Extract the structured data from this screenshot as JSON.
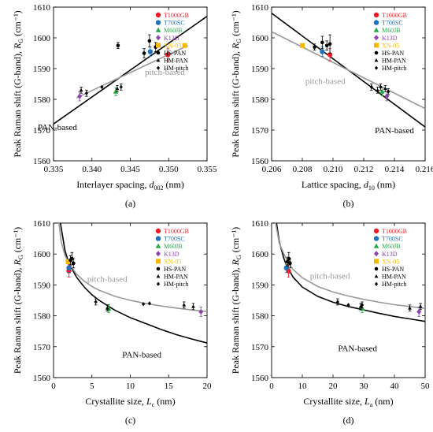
{
  "panels": [
    {
      "label": "(a)",
      "xlabel": "Interlayer spacing, ",
      "xsym": "d",
      "xsub": "002",
      "xunit": " (nm)",
      "ylabel": "Peak Raman shift (G-band), ",
      "ysym": "R",
      "ysub": "G",
      "yunit": " (cm⁻¹)",
      "xlim": [
        0.335,
        0.355
      ],
      "ylim": [
        1560,
        1610
      ],
      "xticks": [
        "0.335",
        "0.340",
        "0.345",
        "0.350",
        "0.355"
      ],
      "yticks": [
        "1560",
        "1570",
        "1580",
        "1590",
        "1600",
        "1610"
      ],
      "lines": [
        {
          "name": "PAN-based",
          "color": "#000000",
          "points": [
            [
              0.335,
              1572
            ],
            [
              0.355,
              1607
            ]
          ]
        },
        {
          "name": "pitch-based",
          "color": "#999999",
          "points": [
            [
              0.338,
              1580.5
            ],
            [
              0.3525,
              1597.5
            ]
          ]
        }
      ],
      "labels": [
        {
          "text": "pitch-based",
          "color": "#999999",
          "x": 0.3495,
          "y": 1588
        },
        {
          "text": "PAN-based",
          "color": "#000000",
          "x": 0.3355,
          "y": 1570
        }
      ]
    },
    {
      "label": "(b)",
      "xlabel": "Lattice spacing, ",
      "xsym": "d",
      "xsub": "10",
      "xunit": " (nm)",
      "ylabel": "Peak Raman shift (G-band), ",
      "ysym": "R",
      "ysub": "G",
      "yunit": " (cm⁻¹)",
      "xlim": [
        0.206,
        0.216
      ],
      "ylim": [
        1560,
        1610
      ],
      "xticks": [
        "0.206",
        "0.208",
        "0.210",
        "0.212",
        "0.214",
        "0.216"
      ],
      "yticks": [
        "1560",
        "1570",
        "1580",
        "1590",
        "1600",
        "1610"
      ],
      "lines": [
        {
          "name": "PAN-based",
          "color": "#000000",
          "points": [
            [
              0.206,
              1608
            ],
            [
              0.216,
              1571
            ]
          ]
        },
        {
          "name": "pitch-based",
          "color": "#999999",
          "points": [
            [
              0.206,
              1602
            ],
            [
              0.216,
              1577
            ]
          ]
        }
      ],
      "labels": [
        {
          "text": "pitch-based",
          "color": "#999999",
          "x": 0.2095,
          "y": 1585
        },
        {
          "text": "PAN-based",
          "color": "#000000",
          "x": 0.214,
          "y": 1569
        }
      ]
    },
    {
      "label": "(c)",
      "xlabel": "Crystallite size, ",
      "xsym": "L",
      "xsub": "c",
      "xunit": " (nm)",
      "ylabel": "Peak Raman shift (G-band), ",
      "ysym": "R",
      "ysub": "G",
      "yunit": " (cm⁻¹)",
      "xlim": [
        0,
        20
      ],
      "ylim": [
        1560,
        1610
      ],
      "xticks": [
        "0",
        "5",
        "10",
        "15",
        "20"
      ],
      "yticks": [
        "1560",
        "1570",
        "1580",
        "1590",
        "1600",
        "1610"
      ],
      "lines": [
        {
          "name": "PAN-based",
          "color": "#000000",
          "points": [
            [
              0.9,
              1610
            ],
            [
              1.5,
              1601
            ],
            [
              2,
              1597
            ],
            [
              3,
              1592.5
            ],
            [
              4,
              1589.3
            ],
            [
              5,
              1586.8
            ],
            [
              6,
              1584.9
            ],
            [
              8,
              1581.8
            ],
            [
              10,
              1579.4
            ],
            [
              12,
              1577.5
            ],
            [
              14,
              1575.6
            ],
            [
              16,
              1573.9
            ],
            [
              18,
              1572.5
            ],
            [
              20,
              1571.2
            ]
          ]
        },
        {
          "name": "pitch-based",
          "color": "#999999",
          "points": [
            [
              0.7,
              1610
            ],
            [
              1,
              1604
            ],
            [
              1.5,
              1599.5
            ],
            [
              2,
              1597
            ],
            [
              3,
              1593.5
            ],
            [
              4,
              1591.2
            ],
            [
              5,
              1589.5
            ],
            [
              6,
              1588.2
            ],
            [
              8,
              1586.3
            ],
            [
              10,
              1585
            ],
            [
              12,
              1584
            ],
            [
              14,
              1583.2
            ],
            [
              16,
              1582.5
            ],
            [
              18,
              1581.9
            ],
            [
              20,
              1581.4
            ]
          ]
        }
      ],
      "labels": [
        {
          "text": "pitch-based",
          "color": "#999999",
          "x": 7,
          "y": 1591
        },
        {
          "text": "PAN-based",
          "color": "#000000",
          "x": 11.5,
          "y": 1566.5
        }
      ]
    },
    {
      "label": "(d)",
      "xlabel": "Crystallite size, ",
      "xsym": "L",
      "xsub": "a",
      "xunit": " (nm)",
      "ylabel": "Peak Raman shift (G-band), ",
      "ysym": "R",
      "ysub": "G",
      "yunit": " (cm⁻¹)",
      "xlim": [
        0,
        50
      ],
      "ylim": [
        1560,
        1610
      ],
      "xticks": [
        "0",
        "10",
        "20",
        "30",
        "40",
        "50"
      ],
      "yticks": [
        "1560",
        "1570",
        "1580",
        "1590",
        "1600",
        "1610"
      ],
      "lines": [
        {
          "name": "PAN-based",
          "color": "#000000",
          "points": [
            [
              1.6,
              1610
            ],
            [
              2.5,
              1604
            ],
            [
              4,
              1598.5
            ],
            [
              5,
              1596
            ],
            [
              7,
              1592.5
            ],
            [
              10,
              1589.3
            ],
            [
              15,
              1586.3
            ],
            [
              20,
              1584.4
            ],
            [
              25,
              1583
            ],
            [
              30,
              1581.9
            ],
            [
              35,
              1580.8
            ],
            [
              40,
              1579.8
            ],
            [
              45,
              1579
            ],
            [
              50,
              1578.2
            ]
          ]
        },
        {
          "name": "pitch-based",
          "color": "#999999",
          "points": [
            [
              1.3,
              1610
            ],
            [
              2.5,
              1603.5
            ],
            [
              4,
              1600
            ],
            [
              5,
              1598
            ],
            [
              7,
              1595
            ],
            [
              10,
              1592.3
            ],
            [
              15,
              1589.5
            ],
            [
              20,
              1587.7
            ],
            [
              25,
              1586.4
            ],
            [
              30,
              1585.3
            ],
            [
              35,
              1584.4
            ],
            [
              40,
              1583.6
            ],
            [
              45,
              1583
            ],
            [
              50,
              1582.4
            ]
          ]
        }
      ],
      "labels": [
        {
          "text": "pitch-based",
          "color": "#999999",
          "x": 19,
          "y": 1592
        },
        {
          "text": "PAN-based",
          "color": "#000000",
          "x": 28,
          "y": 1568.5
        }
      ]
    }
  ],
  "legend": [
    {
      "name": "T1000GB",
      "color": "#ee1c25",
      "marker": "circle"
    },
    {
      "name": "T700SC",
      "color": "#1e73be",
      "marker": "circle"
    },
    {
      "name": "M60JB",
      "color": "#22aa44",
      "marker": "triangle"
    },
    {
      "name": "K13D",
      "color": "#8e44ad",
      "marker": "diamond"
    },
    {
      "name": "XN-05",
      "color": "#f5b800",
      "marker": "square"
    },
    {
      "name": "HS-PAN",
      "color": "#000000",
      "marker": "dot"
    },
    {
      "name": "HM-PAN",
      "color": "#000000",
      "marker": "smalltri"
    },
    {
      "name": "HM-pitch",
      "color": "#000000",
      "marker": "smalldiamond"
    }
  ],
  "chart_data": [
    {
      "type": "scatter",
      "title": "(a)",
      "xlabel": "Interlayer spacing, d002 (nm)",
      "ylabel": "Peak Raman shift (G-band), RG (cm⁻¹)",
      "xlim": [
        0.335,
        0.355
      ],
      "ylim": [
        1560,
        1610
      ],
      "series": [
        {
          "name": "T1000GB",
          "points": [
            [
              0.3499,
              1594.5
            ]
          ],
          "err": [
            2
          ]
        },
        {
          "name": "T700SC",
          "points": [
            [
              0.3476,
              1595.5
            ]
          ],
          "err": [
            1.5
          ]
        },
        {
          "name": "M60JB",
          "points": [
            [
              0.3431,
              1582.5
            ]
          ],
          "err": [
            1.3
          ]
        },
        {
          "name": "K13D",
          "points": [
            [
              0.3384,
              1581
            ]
          ],
          "err": [
            1.5
          ]
        },
        {
          "name": "XN-05",
          "points": [
            [
              0.3521,
              1597.5
            ]
          ],
          "err": [
            0
          ]
        },
        {
          "name": "HS-PAN",
          "points": [
            [
              0.3434,
              1597.5
            ],
            [
              0.3468,
              1595
            ],
            [
              0.3475,
              1599
            ],
            [
              0.3483,
              1597
            ]
          ],
          "err": [
            1,
            1.5,
            2,
            1.5
          ]
        },
        {
          "name": "HM-PAN",
          "points": [
            [
              0.3386,
              1583
            ],
            [
              0.3433,
              1583.5
            ]
          ],
          "err": [
            1,
            1
          ]
        },
        {
          "name": "HM-pitch",
          "points": [
            [
              0.3393,
              1582
            ],
            [
              0.3438,
              1584
            ],
            [
              0.3413,
              1584
            ]
          ],
          "err": [
            1,
            1,
            0
          ]
        }
      ]
    },
    {
      "type": "scatter",
      "title": "(b)",
      "xlabel": "Lattice spacing, d10 (nm)",
      "ylabel": "Peak Raman shift (G-band), RG (cm⁻¹)",
      "xlim": [
        0.206,
        0.216
      ],
      "ylim": [
        1560,
        1610
      ],
      "series": [
        {
          "name": "T1000GB",
          "points": [
            [
              0.2098,
              1594.5
            ]
          ],
          "err": [
            2
          ]
        },
        {
          "name": "T700SC",
          "points": [
            [
              0.2093,
              1595.5
            ]
          ],
          "err": [
            1.5
          ]
        },
        {
          "name": "M60JB",
          "points": [
            [
              0.2132,
              1582.5
            ]
          ],
          "err": [
            1.3
          ]
        },
        {
          "name": "K13D",
          "points": [
            [
              0.2135,
              1581
            ]
          ],
          "err": [
            1.5
          ]
        },
        {
          "name": "XN-05",
          "points": [
            [
              0.208,
              1597.5
            ]
          ],
          "err": [
            0
          ]
        },
        {
          "name": "HS-PAN",
          "points": [
            [
              0.2088,
              1597
            ],
            [
              0.2093,
              1598.5
            ],
            [
              0.2096,
              1597.5
            ],
            [
              0.2098,
              1598
            ]
          ],
          "err": [
            1,
            2,
            1.5,
            3
          ]
        },
        {
          "name": "HM-PAN",
          "points": [
            [
              0.2129,
              1583
            ],
            [
              0.2134,
              1583.5
            ]
          ],
          "err": [
            1,
            1
          ]
        },
        {
          "name": "HM-pitch",
          "points": [
            [
              0.2125,
              1584
            ],
            [
              0.2131,
              1584
            ],
            [
              0.2136,
              1582.5
            ]
          ],
          "err": [
            1,
            1,
            1
          ]
        }
      ]
    },
    {
      "type": "scatter",
      "title": "(c)",
      "xlabel": "Crystallite size, Lc (nm)",
      "ylabel": "Peak Raman shift (G-band), RG (cm⁻¹)",
      "xlim": [
        0,
        20
      ],
      "ylim": [
        1560,
        1610
      ],
      "series": [
        {
          "name": "T1000GB",
          "points": [
            [
              2.0,
              1594.5
            ]
          ],
          "err": [
            2
          ]
        },
        {
          "name": "T700SC",
          "points": [
            [
              2.0,
              1595.5
            ]
          ],
          "err": [
            1.5
          ]
        },
        {
          "name": "M60JB",
          "points": [
            [
              7.2,
              1582.3
            ]
          ],
          "err": [
            1.3
          ]
        },
        {
          "name": "K13D",
          "points": [
            [
              19.2,
              1581.3
            ]
          ],
          "err": [
            1.5
          ]
        },
        {
          "name": "XN-05",
          "points": [
            [
              1.9,
              1597.5
            ]
          ],
          "err": [
            0
          ]
        },
        {
          "name": "HS-PAN",
          "points": [
            [
              2.2,
              1598
            ],
            [
              2.4,
              1598.5
            ],
            [
              2.6,
              1597
            ]
          ],
          "err": [
            1.5,
            2,
            1.5
          ]
        },
        {
          "name": "HM-PAN",
          "points": [
            [
              7.0,
              1582.5
            ],
            [
              17,
              1583.5
            ],
            [
              18.2,
              1583
            ]
          ],
          "err": [
            1,
            1,
            1
          ]
        },
        {
          "name": "HM-pitch",
          "points": [
            [
              5.5,
              1584.5
            ],
            [
              11.7,
              1583.8
            ],
            [
              12.5,
              1584
            ]
          ],
          "err": [
            1,
            0,
            0
          ]
        }
      ]
    },
    {
      "type": "scatter",
      "title": "(d)",
      "xlabel": "Crystallite size, La (nm)",
      "ylabel": "Peak Raman shift (G-band), RG (cm⁻¹)",
      "xlim": [
        0,
        50
      ],
      "ylim": [
        1560,
        1610
      ],
      "series": [
        {
          "name": "T1000GB",
          "points": [
            [
              5.5,
              1594.5
            ]
          ],
          "err": [
            2
          ]
        },
        {
          "name": "T700SC",
          "points": [
            [
              4.8,
              1595.5
            ]
          ],
          "err": [
            1.5
          ]
        },
        {
          "name": "M60JB",
          "points": [
            [
              29.5,
              1582.3
            ]
          ],
          "err": [
            1.3
          ]
        },
        {
          "name": "K13D",
          "points": [
            [
              48,
              1581.3
            ]
          ],
          "err": [
            1.5
          ]
        },
        {
          "name": "XN-05",
          "points": [
            [
              5.4,
              1597.5
            ]
          ],
          "err": [
            0
          ]
        },
        {
          "name": "HS-PAN",
          "points": [
            [
              5.2,
              1597.5
            ],
            [
              5.6,
              1598.5
            ],
            [
              6.0,
              1597
            ]
          ],
          "err": [
            1.5,
            2,
            1.5
          ]
        },
        {
          "name": "HM-PAN",
          "points": [
            [
              29,
              1583
            ],
            [
              45,
              1582.5
            ],
            [
              48.5,
              1583
            ]
          ],
          "err": [
            1,
            1,
            1
          ]
        },
        {
          "name": "HM-pitch",
          "points": [
            [
              21.5,
              1584.5
            ],
            [
              25,
              1583.5
            ],
            [
              29.5,
              1583.5
            ]
          ],
          "err": [
            1,
            0,
            1
          ]
        }
      ]
    }
  ]
}
